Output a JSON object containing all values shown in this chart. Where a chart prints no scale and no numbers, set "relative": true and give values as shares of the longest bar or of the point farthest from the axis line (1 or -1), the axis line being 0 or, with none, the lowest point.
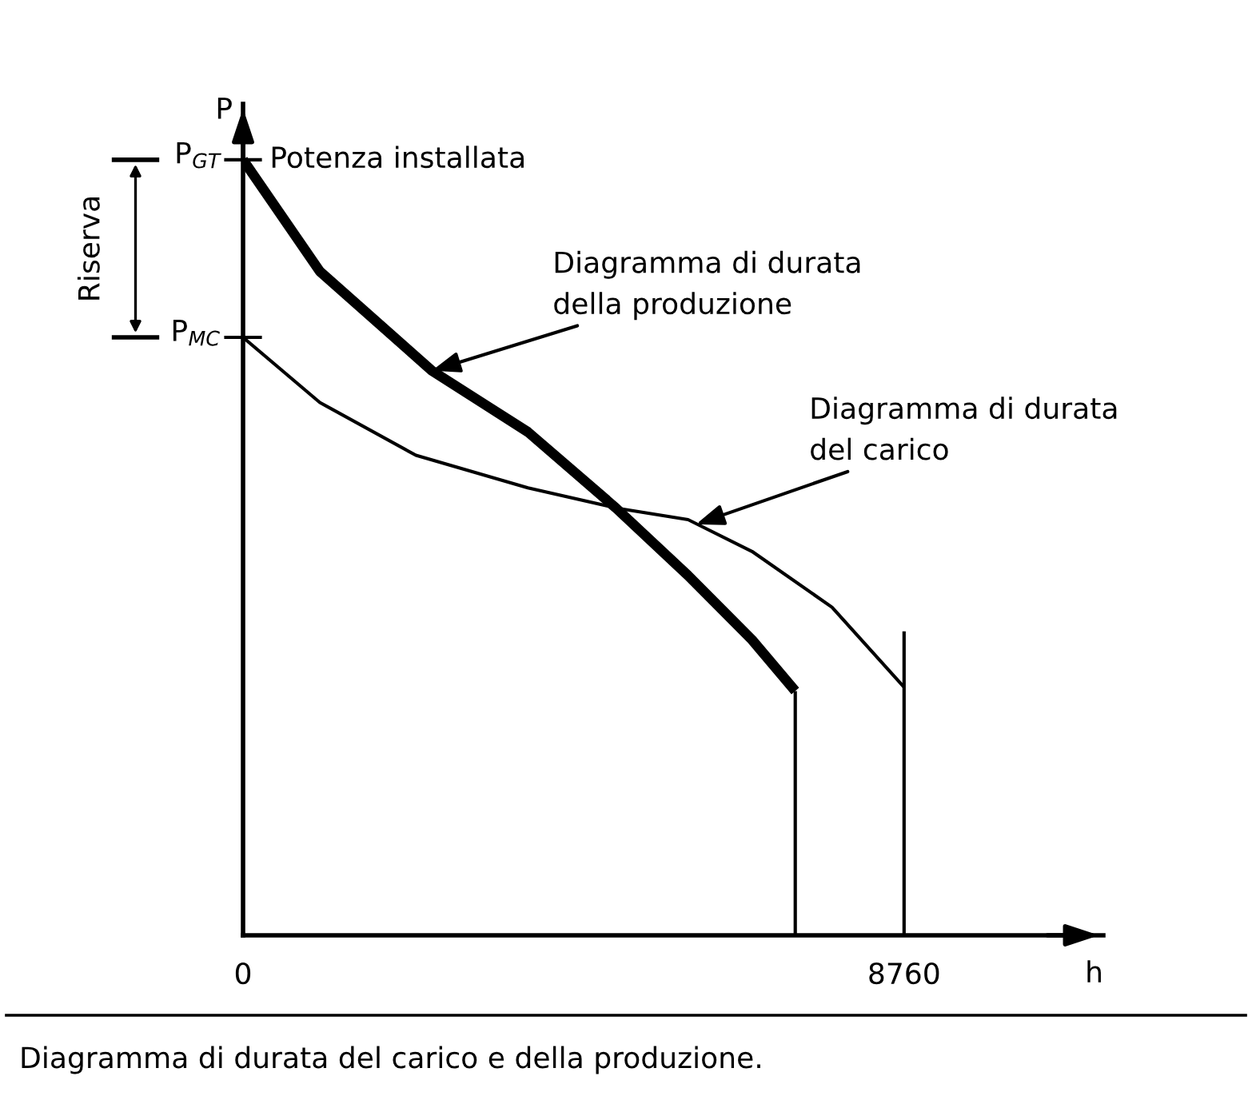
{
  "chart_data": {
    "type": "line",
    "relative": true,
    "xlabel": "h",
    "ylabel": "P",
    "xlim": [
      0,
      11400
    ],
    "xticks": [
      0,
      8760
    ],
    "grid": false,
    "legend": false,
    "marker": "none",
    "line_style": "solid",
    "series": [
      {
        "color": "#000000",
        "x": [
          0,
          1018,
          2503,
          3775,
          4942,
          5897,
          6745,
          7318
        ],
        "values": [
          1.0,
          0.856,
          0.728,
          0.649,
          0.551,
          0.464,
          0.381,
          0.315
        ]
      },
      {
        "color": "#000000",
        "x": [
          0,
          1018,
          2291,
          3775,
          4942,
          5897,
          6745,
          7805,
          8760
        ],
        "values": [
          0.771,
          0.687,
          0.619,
          0.577,
          0.551,
          0.536,
          0.495,
          0.423,
          0.32
        ]
      },
      {
        "color": "#000000",
        "x": [
          7318,
          7318
        ],
        "values": [
          0,
          0.315
        ]
      },
      {
        "color": "#000000",
        "x": [
          8760,
          8760
        ],
        "values": [
          0,
          0.392
        ]
      }
    ],
    "annotations": [
      {
        "text": "P$_{GT}$",
        "x": 0,
        "y": 1.0
      },
      {
        "text": "P$_{MC}$",
        "x": 0,
        "y": 0.771
      },
      {
        "text": "Potenza installata",
        "x": 0,
        "y": 1.0
      },
      "Riserva",
      {
        "text": "Diagramma di durata\ndella produzione",
        "x": 2503,
        "y": 0.728
      },
      {
        "text": "Diagramma di durata\ndel carico",
        "x": 6003,
        "y": 0.53
      },
      "Diagramma di durata del carico e della produzione."
    ]
  }
}
